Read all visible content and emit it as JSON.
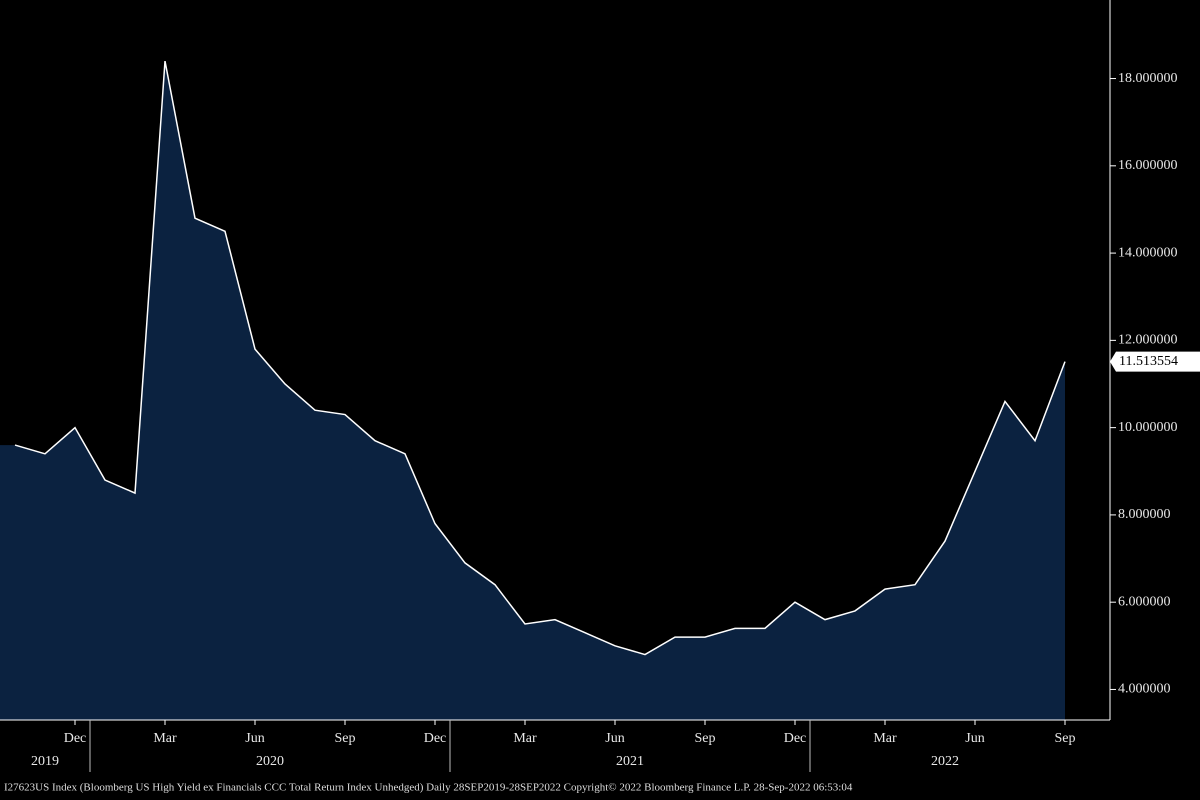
{
  "chart_data": {
    "type": "area",
    "footer": "I27623US Index (Bloomberg US High Yield ex Financials CCC Total Return Index Unhedged)  Daily 28SEP2019-28SEP2022     Copyright© 2022 Bloomberg Finance L.P.     28-Sep-2022 06:53:04",
    "x": [
      "2019-10",
      "2019-11",
      "2019-12",
      "2020-01",
      "2020-02",
      "2020-03",
      "2020-04",
      "2020-05",
      "2020-06",
      "2020-07",
      "2020-08",
      "2020-09",
      "2020-10",
      "2020-11",
      "2020-12",
      "2021-01",
      "2021-02",
      "2021-03",
      "2021-04",
      "2021-05",
      "2021-06",
      "2021-07",
      "2021-08",
      "2021-09",
      "2021-10",
      "2021-11",
      "2021-12",
      "2022-01",
      "2022-02",
      "2022-03",
      "2022-04",
      "2022-05",
      "2022-06",
      "2022-07",
      "2022-08",
      "2022-09"
    ],
    "values": [
      9.6,
      9.4,
      10.0,
      8.8,
      8.5,
      18.4,
      14.8,
      14.5,
      11.8,
      11.0,
      10.4,
      10.3,
      9.7,
      9.4,
      7.8,
      6.9,
      6.4,
      5.5,
      5.6,
      5.3,
      5.0,
      4.8,
      5.2,
      5.2,
      5.4,
      5.4,
      6.0,
      5.6,
      5.8,
      6.3,
      6.4,
      7.4,
      9.0,
      10.6,
      9.7,
      11.513554
    ],
    "value_labels": {
      "35": "11.513554"
    },
    "color": "#0b2240",
    "line_color": "#ffffff",
    "ylim": [
      3.3,
      19.8
    ],
    "yticks": [
      {
        "value": 4,
        "label": "4.000000"
      },
      {
        "value": 6,
        "label": "6.000000"
      },
      {
        "value": 8,
        "label": "8.000000"
      },
      {
        "value": 10,
        "label": "10.000000"
      },
      {
        "value": 12,
        "label": "12.000000"
      },
      {
        "value": 14,
        "label": "14.000000"
      },
      {
        "value": 16,
        "label": "16.000000"
      },
      {
        "value": 18,
        "label": "18.000000"
      }
    ],
    "xticks": [
      {
        "value": "2019-12",
        "label": "Dec"
      },
      {
        "value": "2020-03",
        "label": "Mar"
      },
      {
        "value": "2020-06",
        "label": "Jun"
      },
      {
        "value": "2020-09",
        "label": "Sep"
      },
      {
        "value": "2020-12",
        "label": "Dec"
      },
      {
        "value": "2021-03",
        "label": "Mar"
      },
      {
        "value": "2021-06",
        "label": "Jun"
      },
      {
        "value": "2021-09",
        "label": "Sep"
      },
      {
        "value": "2021-12",
        "label": "Dec"
      },
      {
        "value": "2022-03",
        "label": "Mar"
      },
      {
        "value": "2022-06",
        "label": "Jun"
      },
      {
        "value": "2022-09",
        "label": "Sep"
      }
    ],
    "xgroups": [
      "2019",
      "2020",
      "2021",
      "2022"
    ]
  }
}
